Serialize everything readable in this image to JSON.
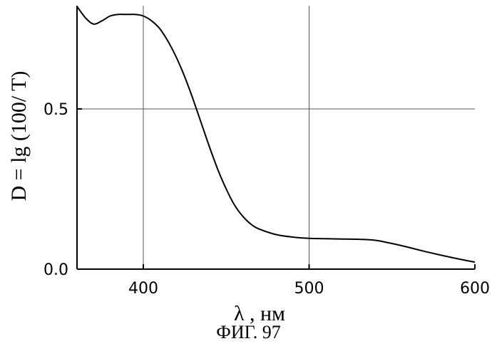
{
  "chart_data": {
    "type": "line",
    "title": "",
    "xlabel": "λ , нм",
    "ylabel": "D = lg (100/ T)",
    "xlim": [
      360,
      600
    ],
    "ylim": [
      0,
      0.8
    ],
    "x_ticks": [
      400,
      500,
      600
    ],
    "x_tick_labels": [
      "400",
      "500",
      "600"
    ],
    "y_ticks": [
      0.0,
      0.5
    ],
    "y_tick_labels": [
      "0.0",
      "0.5"
    ],
    "grid": true,
    "series": [
      {
        "x": [
          360,
          365,
          370,
          375,
          380,
          385,
          390,
          395,
          400,
          405,
          410,
          415,
          420,
          425,
          430,
          435,
          440,
          445,
          450,
          455,
          460,
          465,
          470,
          480,
          490,
          500,
          510,
          520,
          530,
          540,
          550,
          560,
          570,
          580,
          590,
          600
        ],
        "y": [
          0.82,
          0.785,
          0.765,
          0.775,
          0.79,
          0.795,
          0.795,
          0.795,
          0.79,
          0.775,
          0.75,
          0.71,
          0.66,
          0.6,
          0.53,
          0.455,
          0.38,
          0.31,
          0.25,
          0.2,
          0.165,
          0.14,
          0.125,
          0.108,
          0.1,
          0.096,
          0.095,
          0.094,
          0.093,
          0.09,
          0.08,
          0.068,
          0.055,
          0.043,
          0.032,
          0.022
        ],
        "color": "#000000"
      }
    ]
  },
  "caption": "ФИГ. 97"
}
